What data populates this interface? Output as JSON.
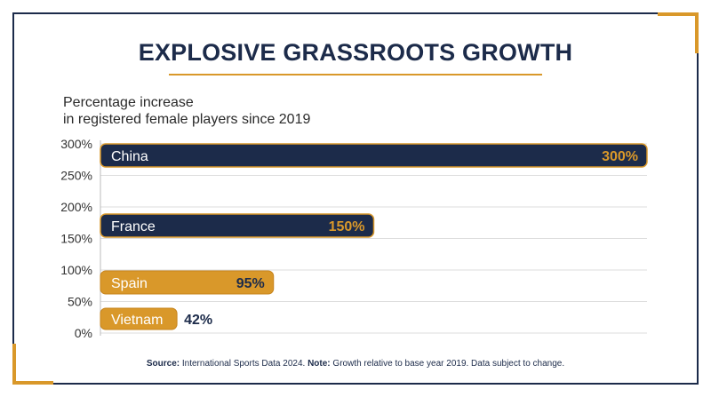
{
  "colors": {
    "navy": "#1c2b4a",
    "gold": "#d9982a",
    "grid": "#dddddd",
    "axis": "#bbbbbb"
  },
  "title": "EXPLOSIVE GRASSROOTS GROWTH",
  "subtitle_line1": "Percentage increase",
  "subtitle_line2": "in registered female players since 2019",
  "source": {
    "label1": "Source:",
    "text1": " International Sports Data 2024. ",
    "label2": "Note:",
    "text2": " Growth relative to base year 2019. Data subject to change."
  },
  "chart_data": {
    "type": "bar",
    "orientation": "horizontal",
    "categories": [
      "China",
      "France",
      "Spain",
      "Vietnam"
    ],
    "values": [
      300,
      150,
      95,
      42
    ],
    "value_labels": [
      "300%",
      "150%",
      "95%",
      "42%"
    ],
    "bar_colors": [
      "navy",
      "navy",
      "gold",
      "gold"
    ],
    "value_axis": {
      "ticks": [
        "0%",
        "50%",
        "100%",
        "150%",
        "200%",
        "250%",
        "300%"
      ],
      "range": [
        0,
        300
      ]
    },
    "grid": true
  }
}
